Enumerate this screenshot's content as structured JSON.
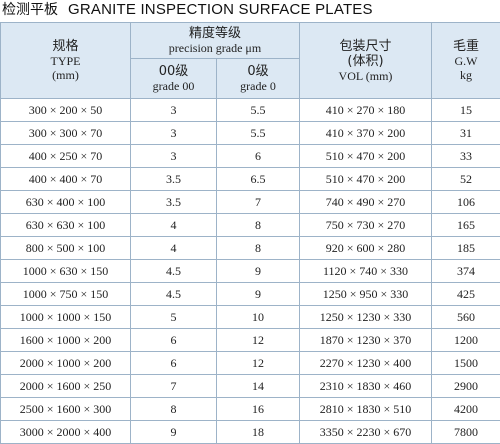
{
  "header": {
    "title_cn": "检测平板",
    "title_en": "GRANITE INSPECTION SURFACE PLATES"
  },
  "table": {
    "columns": {
      "type": [
        "规格",
        "TYPE",
        "(mm)"
      ],
      "precision": [
        "精度等级",
        "precision grade  μm"
      ],
      "grade00": [
        "00级",
        "grade 00"
      ],
      "grade0": [
        "0级",
        "grade 0"
      ],
      "vol": [
        "包装尺寸",
        "(体积)",
        "VOL (mm)"
      ],
      "gw": [
        "毛重",
        "G.W",
        "kg"
      ]
    },
    "rows": [
      [
        "300 × 200 × 50",
        "3",
        "5.5",
        "410 × 270 × 180",
        "15"
      ],
      [
        "300 × 300 × 70",
        "3",
        "5.5",
        "410 × 370 × 200",
        "31"
      ],
      [
        "400 × 250 × 70",
        "3",
        "6",
        "510 × 470 × 200",
        "33"
      ],
      [
        "400 × 400 × 70",
        "3.5",
        "6.5",
        "510 × 470 × 200",
        "52"
      ],
      [
        "630 × 400 × 100",
        "3.5",
        "7",
        "740 × 490 × 270",
        "106"
      ],
      [
        "630 × 630 × 100",
        "4",
        "8",
        "750 × 730 × 270",
        "165"
      ],
      [
        "800 × 500 × 100",
        "4",
        "8",
        "920 × 600 × 280",
        "185"
      ],
      [
        "1000 × 630 × 150",
        "4.5",
        "9",
        "1120 × 740 × 330",
        "374"
      ],
      [
        "1000 × 750 × 150",
        "4.5",
        "9",
        "1250 × 950 × 330",
        "425"
      ],
      [
        "1000 × 1000 × 150",
        "5",
        "10",
        "1250 × 1230 × 330",
        "560"
      ],
      [
        "1600 × 1000 × 200",
        "6",
        "12",
        "1870 × 1230 × 370",
        "1200"
      ],
      [
        "2000 × 1000 × 200",
        "6",
        "12",
        "2270 × 1230 × 400",
        "1500"
      ],
      [
        "2000 × 1600 × 250",
        "7",
        "14",
        "2310 × 1830 × 460",
        "2900"
      ],
      [
        "2500 × 1600 × 300",
        "8",
        "16",
        "2810 × 1830 × 510",
        "4200"
      ],
      [
        "3000 × 2000 × 400",
        "9",
        "18",
        "3350 × 2230 × 670",
        "7800"
      ]
    ]
  }
}
